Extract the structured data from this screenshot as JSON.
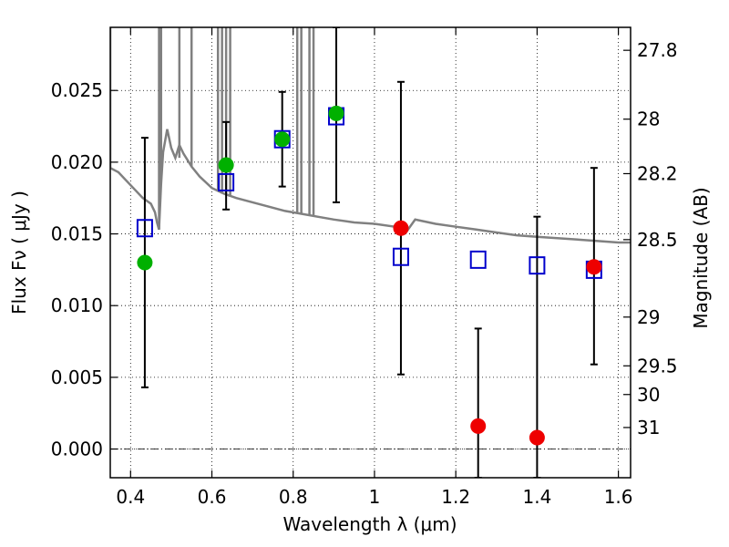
{
  "chart_data": {
    "type": "scatter",
    "title": "",
    "xlabel": "Wavelength  λ (μm)",
    "ylabel_left": "Flux  Fν  ( μJy )",
    "ylabel_right": "Magnitude (AB)",
    "xlim": [
      0.35,
      1.63
    ],
    "ylim": [
      -0.002,
      0.0294
    ],
    "grid": true,
    "x_ticks": [
      0.4,
      0.6,
      0.8,
      1.0,
      1.2,
      1.4,
      1.6
    ],
    "x_tick_labels": [
      "0.4",
      "0.6",
      "0.8",
      "1",
      "1.2",
      "1.4",
      "1.6"
    ],
    "y_ticks": [
      0.0,
      0.005,
      0.01,
      0.015,
      0.02,
      0.025
    ],
    "y_tick_labels": [
      "0.000",
      "0.005",
      "0.010",
      "0.015",
      "0.020",
      "0.025"
    ],
    "right_ticks_flux": [
      0.0278,
      0.023,
      0.0192,
      0.0146,
      0.0092,
      0.0058,
      0.0038,
      0.0015
    ],
    "right_tick_labels": [
      "27.8",
      "28",
      "28.2",
      "28.5",
      "29",
      "29.5",
      "30",
      "31"
    ],
    "zero_line": 0.0,
    "colors": {
      "template": "#808080",
      "model_box": "#0000cc",
      "detection": "#00b000",
      "nondetection": "#ee0000",
      "errorbar": "#000000"
    },
    "template_spectrum": {
      "x": [
        0.35,
        0.37,
        0.39,
        0.41,
        0.43,
        0.45,
        0.46,
        0.465,
        0.47,
        0.475,
        0.48,
        0.49,
        0.5,
        0.51,
        0.52,
        0.53,
        0.55,
        0.57,
        0.6,
        0.63,
        0.66,
        0.7,
        0.74,
        0.78,
        0.82,
        0.86,
        0.9,
        0.95,
        1.0,
        1.05,
        1.08,
        1.1,
        1.15,
        1.2,
        1.25,
        1.3,
        1.35,
        1.4,
        1.45,
        1.5,
        1.55,
        1.6,
        1.63
      ],
      "y": [
        0.0196,
        0.0193,
        0.0187,
        0.0181,
        0.0175,
        0.0171,
        0.0165,
        0.0158,
        0.0153,
        0.0185,
        0.0207,
        0.0223,
        0.021,
        0.0203,
        0.0212,
        0.0206,
        0.0197,
        0.019,
        0.0182,
        0.0178,
        0.0175,
        0.0172,
        0.0169,
        0.0166,
        0.0164,
        0.0162,
        0.016,
        0.0158,
        0.0157,
        0.0155,
        0.0152,
        0.016,
        0.0157,
        0.0155,
        0.0153,
        0.0151,
        0.0149,
        0.0148,
        0.0147,
        0.0146,
        0.0145,
        0.0144,
        0.0144
      ]
    },
    "template_spikes": [
      {
        "x": 0.35,
        "y": 0.0294
      },
      {
        "x": 0.35,
        "y": 0.0196
      },
      {
        "x": 0.47,
        "y": 0.0294
      },
      {
        "x": 0.47,
        "y": 0.0153
      },
      {
        "x": 0.475,
        "y": 0.0294
      },
      {
        "x": 0.475,
        "y": 0.0185
      },
      {
        "x": 0.52,
        "y": 0.0294
      },
      {
        "x": 0.52,
        "y": 0.0203
      },
      {
        "x": 0.55,
        "y": 0.0294
      },
      {
        "x": 0.55,
        "y": 0.0197
      },
      {
        "x": 0.615,
        "y": 0.0294
      },
      {
        "x": 0.615,
        "y": 0.018
      },
      {
        "x": 0.625,
        "y": 0.0294
      },
      {
        "x": 0.625,
        "y": 0.0178
      },
      {
        "x": 0.635,
        "y": 0.0294
      },
      {
        "x": 0.635,
        "y": 0.0177
      },
      {
        "x": 0.645,
        "y": 0.0294
      },
      {
        "x": 0.645,
        "y": 0.0176
      },
      {
        "x": 0.81,
        "y": 0.0294
      },
      {
        "x": 0.81,
        "y": 0.0164
      },
      {
        "x": 0.82,
        "y": 0.0294
      },
      {
        "x": 0.82,
        "y": 0.0164
      },
      {
        "x": 0.84,
        "y": 0.0294
      },
      {
        "x": 0.84,
        "y": 0.0163
      },
      {
        "x": 0.85,
        "y": 0.0294
      },
      {
        "x": 0.85,
        "y": 0.0163
      }
    ],
    "model_boxes": [
      {
        "x": 0.435,
        "y": 0.0154
      },
      {
        "x": 0.635,
        "y": 0.0186
      },
      {
        "x": 0.773,
        "y": 0.0216
      },
      {
        "x": 0.906,
        "y": 0.0232
      },
      {
        "x": 1.065,
        "y": 0.0134
      },
      {
        "x": 1.255,
        "y": 0.0132
      },
      {
        "x": 1.4,
        "y": 0.0128
      },
      {
        "x": 1.54,
        "y": 0.0125
      }
    ],
    "detections": [
      {
        "x": 0.435,
        "y": 0.013,
        "yerr_low": 0.0043,
        "yerr_high": 0.0217
      },
      {
        "x": 0.635,
        "y": 0.0198,
        "yerr_low": 0.0167,
        "yerr_high": 0.0228
      },
      {
        "x": 0.773,
        "y": 0.0216,
        "yerr_low": 0.0183,
        "yerr_high": 0.0249
      },
      {
        "x": 0.906,
        "y": 0.0234,
        "yerr_low": 0.0172,
        "yerr_high": 0.0294
      }
    ],
    "nondetections": [
      {
        "x": 1.065,
        "y": 0.0154,
        "yerr_low": 0.0052,
        "yerr_high": 0.0256
      },
      {
        "x": 1.255,
        "y": 0.0016,
        "yerr_low": -0.002,
        "yerr_high": 0.0084
      },
      {
        "x": 1.4,
        "y": 0.0008,
        "yerr_low": -0.002,
        "yerr_high": 0.0162
      },
      {
        "x": 1.54,
        "y": 0.0127,
        "yerr_low": 0.0059,
        "yerr_high": 0.0196
      }
    ]
  }
}
